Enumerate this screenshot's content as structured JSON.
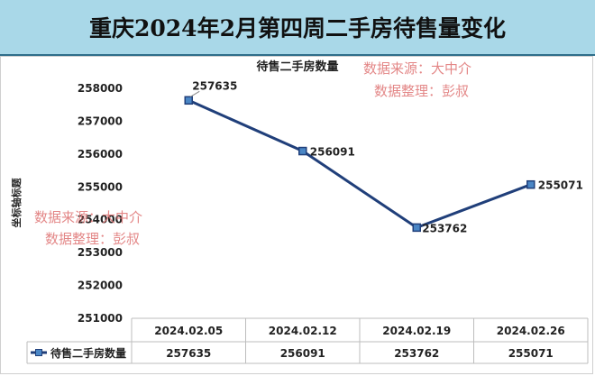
{
  "banner": {
    "title": "重庆2024年2月第四周二手房待售量变化"
  },
  "watermarks": [
    "数据来源：大中介",
    "数据整理：彭叔"
  ],
  "colors": {
    "line": "#203f7a",
    "marker": "#4a86c5",
    "banner": "#a9d8e8"
  },
  "chart_data": {
    "type": "line",
    "title": "待售二手房数量",
    "ylabel": "坐标轴标题",
    "xlabel": "",
    "categories": [
      "2024.02.05",
      "2024.02.12",
      "2024.02.19",
      "2024.02.26"
    ],
    "series": [
      {
        "name": "待售二手房数量",
        "values": [
          257635,
          256091,
          253762,
          255071
        ]
      }
    ],
    "ylim": [
      251000,
      258000
    ],
    "yticks": [
      251000,
      252000,
      253000,
      254000,
      255000,
      256000,
      257000,
      258000
    ],
    "grid": false,
    "legend": "data-table",
    "data_table": true
  }
}
